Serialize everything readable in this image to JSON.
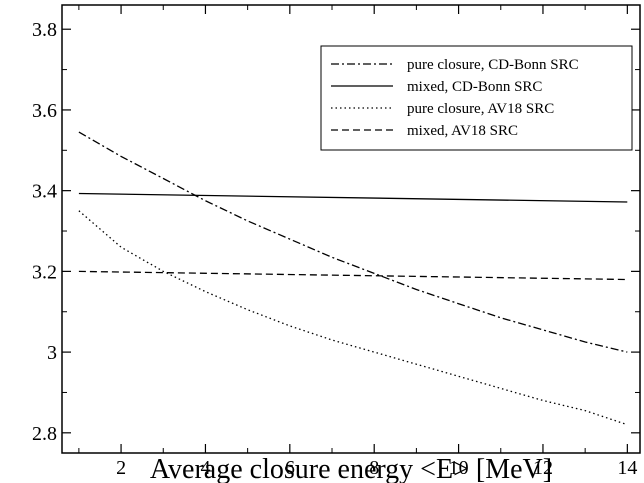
{
  "chart_data": {
    "type": "line",
    "title": "",
    "xlabel": "Average closure energy <E> [MeV]",
    "ylabel": "",
    "xlim": [
      0.6,
      14.3
    ],
    "ylim": [
      2.75,
      3.86
    ],
    "x_ticks": [
      2,
      4,
      6,
      8,
      10,
      12,
      14
    ],
    "x_tick_labels": [
      "2",
      "4",
      "6",
      "8",
      "10",
      "12",
      "14"
    ],
    "y_ticks": [
      2.8,
      3.0,
      3.2,
      3.4,
      3.6,
      3.8
    ],
    "y_tick_labels": [
      "2.8",
      "3",
      "3.2",
      "3.4",
      "3.6",
      "3.8"
    ],
    "grid": false,
    "legend_position": "top-right",
    "series": [
      {
        "name": "pure closure, CD-Bonn SRC",
        "style": "dash-dot",
        "color": "#000000",
        "x": [
          1,
          2,
          3,
          4,
          5,
          6,
          7,
          8,
          9,
          10,
          11,
          12,
          13,
          14
        ],
        "y": [
          3.545,
          3.485,
          3.43,
          3.375,
          3.325,
          3.28,
          3.235,
          3.195,
          3.155,
          3.12,
          3.085,
          3.055,
          3.025,
          3.0
        ]
      },
      {
        "name": "mixed, CD-Bonn SRC",
        "style": "solid",
        "color": "#000000",
        "x": [
          1,
          14
        ],
        "y": [
          3.393,
          3.372
        ]
      },
      {
        "name": "pure closure, AV18 SRC",
        "style": "dotted",
        "color": "#000000",
        "x": [
          1,
          2,
          3,
          4,
          5,
          6,
          7,
          8,
          9,
          10,
          11,
          12,
          13,
          14
        ],
        "y": [
          3.35,
          3.26,
          3.2,
          3.15,
          3.105,
          3.065,
          3.03,
          3.0,
          2.97,
          2.94,
          2.91,
          2.88,
          2.855,
          2.82
        ]
      },
      {
        "name": "mixed, AV18 SRC",
        "style": "dashed",
        "color": "#000000",
        "x": [
          1,
          14
        ],
        "y": [
          3.2,
          3.18
        ]
      }
    ]
  }
}
